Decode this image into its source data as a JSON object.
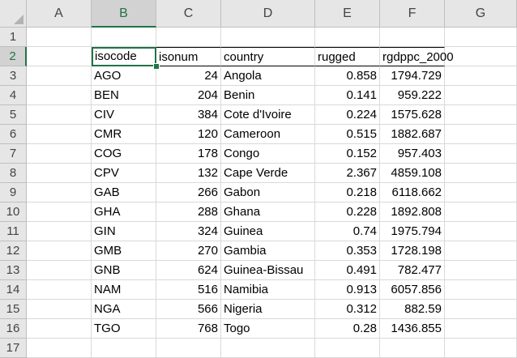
{
  "columns": [
    "A",
    "B",
    "C",
    "D",
    "E",
    "F",
    "G"
  ],
  "rows": [
    "1",
    "2",
    "3",
    "4",
    "5",
    "6",
    "7",
    "8",
    "9",
    "10",
    "11",
    "12",
    "13",
    "14",
    "15",
    "16",
    "17"
  ],
  "active_cell": "B2",
  "header": [
    "isocode",
    "isonum",
    "country",
    "rugged",
    "rgdppc_2000"
  ],
  "data": [
    [
      "AGO",
      "24",
      "Angola",
      "0.858",
      "1794.729"
    ],
    [
      "BEN",
      "204",
      "Benin",
      "0.141",
      "959.222"
    ],
    [
      "CIV",
      "384",
      "Cote d'Ivoire",
      "0.224",
      "1575.628"
    ],
    [
      "CMR",
      "120",
      "Cameroon",
      "0.515",
      "1882.687"
    ],
    [
      "COG",
      "178",
      "Congo",
      "0.152",
      "957.403"
    ],
    [
      "CPV",
      "132",
      "Cape Verde",
      "2.367",
      "4859.108"
    ],
    [
      "GAB",
      "266",
      "Gabon",
      "0.218",
      "6118.662"
    ],
    [
      "GHA",
      "288",
      "Ghana",
      "0.228",
      "1892.808"
    ],
    [
      "GIN",
      "324",
      "Guinea",
      "0.74",
      "1975.794"
    ],
    [
      "GMB",
      "270",
      "Gambia",
      "0.353",
      "1728.198"
    ],
    [
      "GNB",
      "624",
      "Guinea-Bissau",
      "0.491",
      "782.477"
    ],
    [
      "NAM",
      "516",
      "Namibia",
      "0.913",
      "6057.856"
    ],
    [
      "NGA",
      "566",
      "Nigeria",
      "0.312",
      "882.59"
    ],
    [
      "TGO",
      "768",
      "Togo",
      "0.28",
      "1436.855"
    ]
  ],
  "colors": {
    "accent": "#217346",
    "header_bg": "#e6e6e6",
    "grid": "#d9d9d9"
  }
}
